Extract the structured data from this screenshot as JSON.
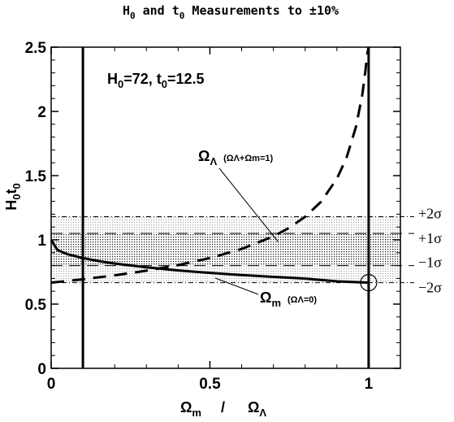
{
  "chart_data": {
    "type": "line",
    "title": "H0 and t0 Measurements to ±10%",
    "xlabel": "Ωm / ΩΛ",
    "ylabel": "H0t0",
    "xlim": [
      0,
      1.1
    ],
    "ylim": [
      0,
      2.5
    ],
    "x_ticks": [
      0,
      0.5,
      1
    ],
    "x_tick_labels": [
      "0",
      "0.5",
      "1"
    ],
    "y_ticks": [
      0,
      0.5,
      1,
      1.5,
      2,
      2.5
    ],
    "y_tick_labels": [
      "0",
      "0.5",
      "1",
      "1.5",
      "2",
      "2.5"
    ],
    "annotation": "H0=72, t0=12.5",
    "vertical_lines": [
      0.1,
      1.0
    ],
    "series": [
      {
        "name": "Ωm (ΩΛ=0)",
        "label_main": "Ωm",
        "label_sub": "(ΩΛ=0)",
        "style": "solid",
        "x": [
          0,
          0.02,
          0.05,
          0.1,
          0.15,
          0.2,
          0.3,
          0.4,
          0.5,
          0.6,
          0.7,
          0.8,
          0.9,
          1.0
        ],
        "y": [
          1.0,
          0.92,
          0.89,
          0.858,
          0.835,
          0.816,
          0.786,
          0.762,
          0.743,
          0.726,
          0.712,
          0.699,
          0.677,
          0.667
        ]
      },
      {
        "name": "ΩΛ (ΩΛ+Ωm=1)",
        "label_main": "ΩΛ",
        "label_sub": "(ΩΛ+Ωm=1)",
        "style": "dashed",
        "x": [
          0,
          0.1,
          0.2,
          0.3,
          0.4,
          0.5,
          0.6,
          0.7,
          0.75,
          0.8,
          0.85,
          0.9,
          0.93,
          0.96,
          0.98,
          0.99,
          0.995,
          1.0
        ],
        "y": [
          0.667,
          0.693,
          0.724,
          0.76,
          0.804,
          0.858,
          0.929,
          1.027,
          1.094,
          1.18,
          1.297,
          1.476,
          1.636,
          1.88,
          2.13,
          2.32,
          2.44,
          2.5
        ]
      }
    ],
    "bands": [
      {
        "name": "1σ",
        "y": [
          0.8,
          1.05
        ],
        "fill": "dotted"
      },
      {
        "name": "2σ",
        "y": [
          0.667,
          1.18
        ],
        "fill": "dash-dot border"
      }
    ],
    "sigma_labels": [
      {
        "text": "+2σ",
        "y": 1.18
      },
      {
        "text": "+1σ",
        "y": 1.05
      },
      {
        "text": "−1σ",
        "y": 0.8
      },
      {
        "text": "−2σ",
        "y": 0.667
      }
    ],
    "marker": {
      "shape": "open-circle",
      "x": 1.0,
      "y": 0.667
    }
  }
}
